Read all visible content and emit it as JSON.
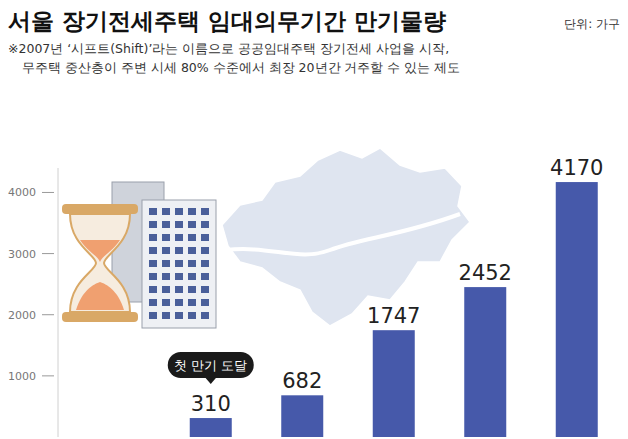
{
  "chart_data": {
    "type": "bar",
    "title": "서울 장기전세주택 임대의무기간 만기물량",
    "subtitle": "단위: 가구",
    "notes": [
      "※2007년 ‘시프트(Shift)’라는 이름으로 공공임대주택 장기전세 사업을 시작,",
      "무주택 중산층이 주변 시세 80% 수준에서 최장 20년간 거주할 수 있는 제도"
    ],
    "annotation": "첫 만기 도달",
    "categories": [
      null,
      null,
      null,
      null,
      null
    ],
    "values": [
      310,
      682,
      1747,
      2452,
      4170
    ],
    "color": "#4659aa",
    "ylim": [
      0,
      4400
    ],
    "yticks": [
      1000,
      2000,
      3000,
      4000
    ],
    "grid": false,
    "data_labels": true
  }
}
